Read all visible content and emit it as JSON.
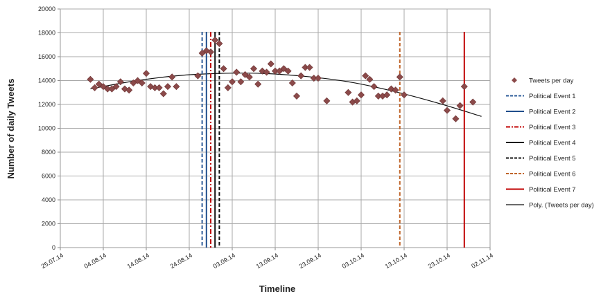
{
  "chart_data": {
    "type": "scatter",
    "title": "",
    "xlabel": "Timeline",
    "ylabel": "Number of daily Tweets",
    "x_type": "date",
    "xlim": [
      "2014-07-25",
      "2014-11-02"
    ],
    "ylim": [
      0,
      20000
    ],
    "x_ticks": [
      {
        "date": "2014-07-25",
        "label": "25.07.14"
      },
      {
        "date": "2014-08-04",
        "label": "04.08.14"
      },
      {
        "date": "2014-08-14",
        "label": "14.08.14"
      },
      {
        "date": "2014-08-24",
        "label": "24.08.14"
      },
      {
        "date": "2014-09-03",
        "label": "03.09.14"
      },
      {
        "date": "2014-09-13",
        "label": "13.09.14"
      },
      {
        "date": "2014-09-23",
        "label": "23.09.14"
      },
      {
        "date": "2014-10-03",
        "label": "03.10.14"
      },
      {
        "date": "2014-10-13",
        "label": "13.10.14"
      },
      {
        "date": "2014-10-23",
        "label": "23.10.14"
      },
      {
        "date": "2014-11-02",
        "label": "02.11.14"
      }
    ],
    "y_ticks": [
      {
        "value": 0,
        "label": "0"
      },
      {
        "value": 2000,
        "label": "2000"
      },
      {
        "value": 4000,
        "label": "4000"
      },
      {
        "value": 6000,
        "label": "6000"
      },
      {
        "value": 8000,
        "label": "8000"
      },
      {
        "value": 10000,
        "label": "10000"
      },
      {
        "value": 12000,
        "label": "12000"
      },
      {
        "value": 14000,
        "label": "14000"
      },
      {
        "value": 16000,
        "label": "16000"
      },
      {
        "value": 18000,
        "label": "18000"
      },
      {
        "value": 20000,
        "label": "20000"
      }
    ],
    "grid": true,
    "legend_position": "right",
    "series": [
      {
        "name": "Tweets per day",
        "kind": "scatter",
        "marker": "diamond",
        "color": "#8B4A4A",
        "points": [
          {
            "x": "2014-08-01",
            "y": 14100
          },
          {
            "x": "2014-08-02",
            "y": 13400
          },
          {
            "x": "2014-08-03",
            "y": 13700
          },
          {
            "x": "2014-08-04",
            "y": 13500
          },
          {
            "x": "2014-08-05",
            "y": 13300
          },
          {
            "x": "2014-08-06",
            "y": 13300
          },
          {
            "x": "2014-08-07",
            "y": 13500
          },
          {
            "x": "2014-08-08",
            "y": 13900
          },
          {
            "x": "2014-08-09",
            "y": 13300
          },
          {
            "x": "2014-08-10",
            "y": 13200
          },
          {
            "x": "2014-08-11",
            "y": 13800
          },
          {
            "x": "2014-08-12",
            "y": 14000
          },
          {
            "x": "2014-08-13",
            "y": 13800
          },
          {
            "x": "2014-08-14",
            "y": 14600
          },
          {
            "x": "2014-08-15",
            "y": 13500
          },
          {
            "x": "2014-08-16",
            "y": 13400
          },
          {
            "x": "2014-08-17",
            "y": 13400
          },
          {
            "x": "2014-08-18",
            "y": 12900
          },
          {
            "x": "2014-08-19",
            "y": 13500
          },
          {
            "x": "2014-08-20",
            "y": 14300
          },
          {
            "x": "2014-08-21",
            "y": 13500
          },
          {
            "x": "2014-08-26",
            "y": 14400
          },
          {
            "x": "2014-08-27",
            "y": 16300
          },
          {
            "x": "2014-08-28",
            "y": 16500
          },
          {
            "x": "2014-08-29",
            "y": 16400
          },
          {
            "x": "2014-08-30",
            "y": 17400
          },
          {
            "x": "2014-08-31",
            "y": 17100
          },
          {
            "x": "2014-09-01",
            "y": 15000
          },
          {
            "x": "2014-09-02",
            "y": 13400
          },
          {
            "x": "2014-09-03",
            "y": 13900
          },
          {
            "x": "2014-09-04",
            "y": 14700
          },
          {
            "x": "2014-09-05",
            "y": 13900
          },
          {
            "x": "2014-09-06",
            "y": 14500
          },
          {
            "x": "2014-09-07",
            "y": 14300
          },
          {
            "x": "2014-09-08",
            "y": 15000
          },
          {
            "x": "2014-09-09",
            "y": 13700
          },
          {
            "x": "2014-09-10",
            "y": 14800
          },
          {
            "x": "2014-09-11",
            "y": 14700
          },
          {
            "x": "2014-09-12",
            "y": 15400
          },
          {
            "x": "2014-09-13",
            "y": 14800
          },
          {
            "x": "2014-09-14",
            "y": 14800
          },
          {
            "x": "2014-09-15",
            "y": 15000
          },
          {
            "x": "2014-09-16",
            "y": 14800
          },
          {
            "x": "2014-09-17",
            "y": 13800
          },
          {
            "x": "2014-09-18",
            "y": 12700
          },
          {
            "x": "2014-09-19",
            "y": 14400
          },
          {
            "x": "2014-09-20",
            "y": 15100
          },
          {
            "x": "2014-09-21",
            "y": 15100
          },
          {
            "x": "2014-09-22",
            "y": 14200
          },
          {
            "x": "2014-09-23",
            "y": 14200
          },
          {
            "x": "2014-09-25",
            "y": 12300
          },
          {
            "x": "2014-09-30",
            "y": 13000
          },
          {
            "x": "2014-10-01",
            "y": 12200
          },
          {
            "x": "2014-10-02",
            "y": 12300
          },
          {
            "x": "2014-10-03",
            "y": 12800
          },
          {
            "x": "2014-10-04",
            "y": 14400
          },
          {
            "x": "2014-10-05",
            "y": 14100
          },
          {
            "x": "2014-10-06",
            "y": 13500
          },
          {
            "x": "2014-10-07",
            "y": 12700
          },
          {
            "x": "2014-10-08",
            "y": 12700
          },
          {
            "x": "2014-10-09",
            "y": 12800
          },
          {
            "x": "2014-10-10",
            "y": 13300
          },
          {
            "x": "2014-10-11",
            "y": 13200
          },
          {
            "x": "2014-10-12",
            "y": 14300
          },
          {
            "x": "2014-10-13",
            "y": 12800
          },
          {
            "x": "2014-10-22",
            "y": 12300
          },
          {
            "x": "2014-10-23",
            "y": 11500
          },
          {
            "x": "2014-10-25",
            "y": 10800
          },
          {
            "x": "2014-10-26",
            "y": 11900
          },
          {
            "x": "2014-10-27",
            "y": 13500
          },
          {
            "x": "2014-10-29",
            "y": 12200
          }
        ]
      },
      {
        "name": "Political Event 1",
        "kind": "vline",
        "x": "2014-08-27",
        "color": "#2E5C9A",
        "dash": "dashed"
      },
      {
        "name": "Political Event 2",
        "kind": "vline",
        "x": "2014-08-28",
        "color": "#1F4E8C",
        "dash": "solid"
      },
      {
        "name": "Political Event 3",
        "kind": "vline",
        "x": "2014-08-29",
        "color": "#C00000",
        "dash": "dashdot"
      },
      {
        "name": "Political Event 4",
        "kind": "vline",
        "x": "2014-08-30",
        "color": "#111111",
        "dash": "solid"
      },
      {
        "name": "Political Event 5",
        "kind": "vline",
        "x": "2014-08-31",
        "color": "#111111",
        "dash": "dashed"
      },
      {
        "name": "Political Event 6",
        "kind": "vline",
        "x": "2014-10-12",
        "color": "#C0652A",
        "dash": "dashed"
      },
      {
        "name": "Political Event 7",
        "kind": "vline",
        "x": "2014-10-27",
        "color": "#C00000",
        "dash": "solid"
      },
      {
        "name": "Poly. (Tweets per day)",
        "kind": "trendline",
        "color": "#111111",
        "dash": "solid",
        "points": [
          {
            "x": "2014-08-01",
            "y": 13300
          },
          {
            "x": "2014-08-11",
            "y": 13950
          },
          {
            "x": "2014-08-21",
            "y": 14400
          },
          {
            "x": "2014-08-31",
            "y": 14600
          },
          {
            "x": "2014-09-10",
            "y": 14600
          },
          {
            "x": "2014-09-20",
            "y": 14350
          },
          {
            "x": "2014-09-30",
            "y": 13900
          },
          {
            "x": "2014-10-10",
            "y": 13150
          },
          {
            "x": "2014-10-20",
            "y": 12200
          },
          {
            "x": "2014-10-31",
            "y": 11000
          }
        ]
      }
    ]
  }
}
